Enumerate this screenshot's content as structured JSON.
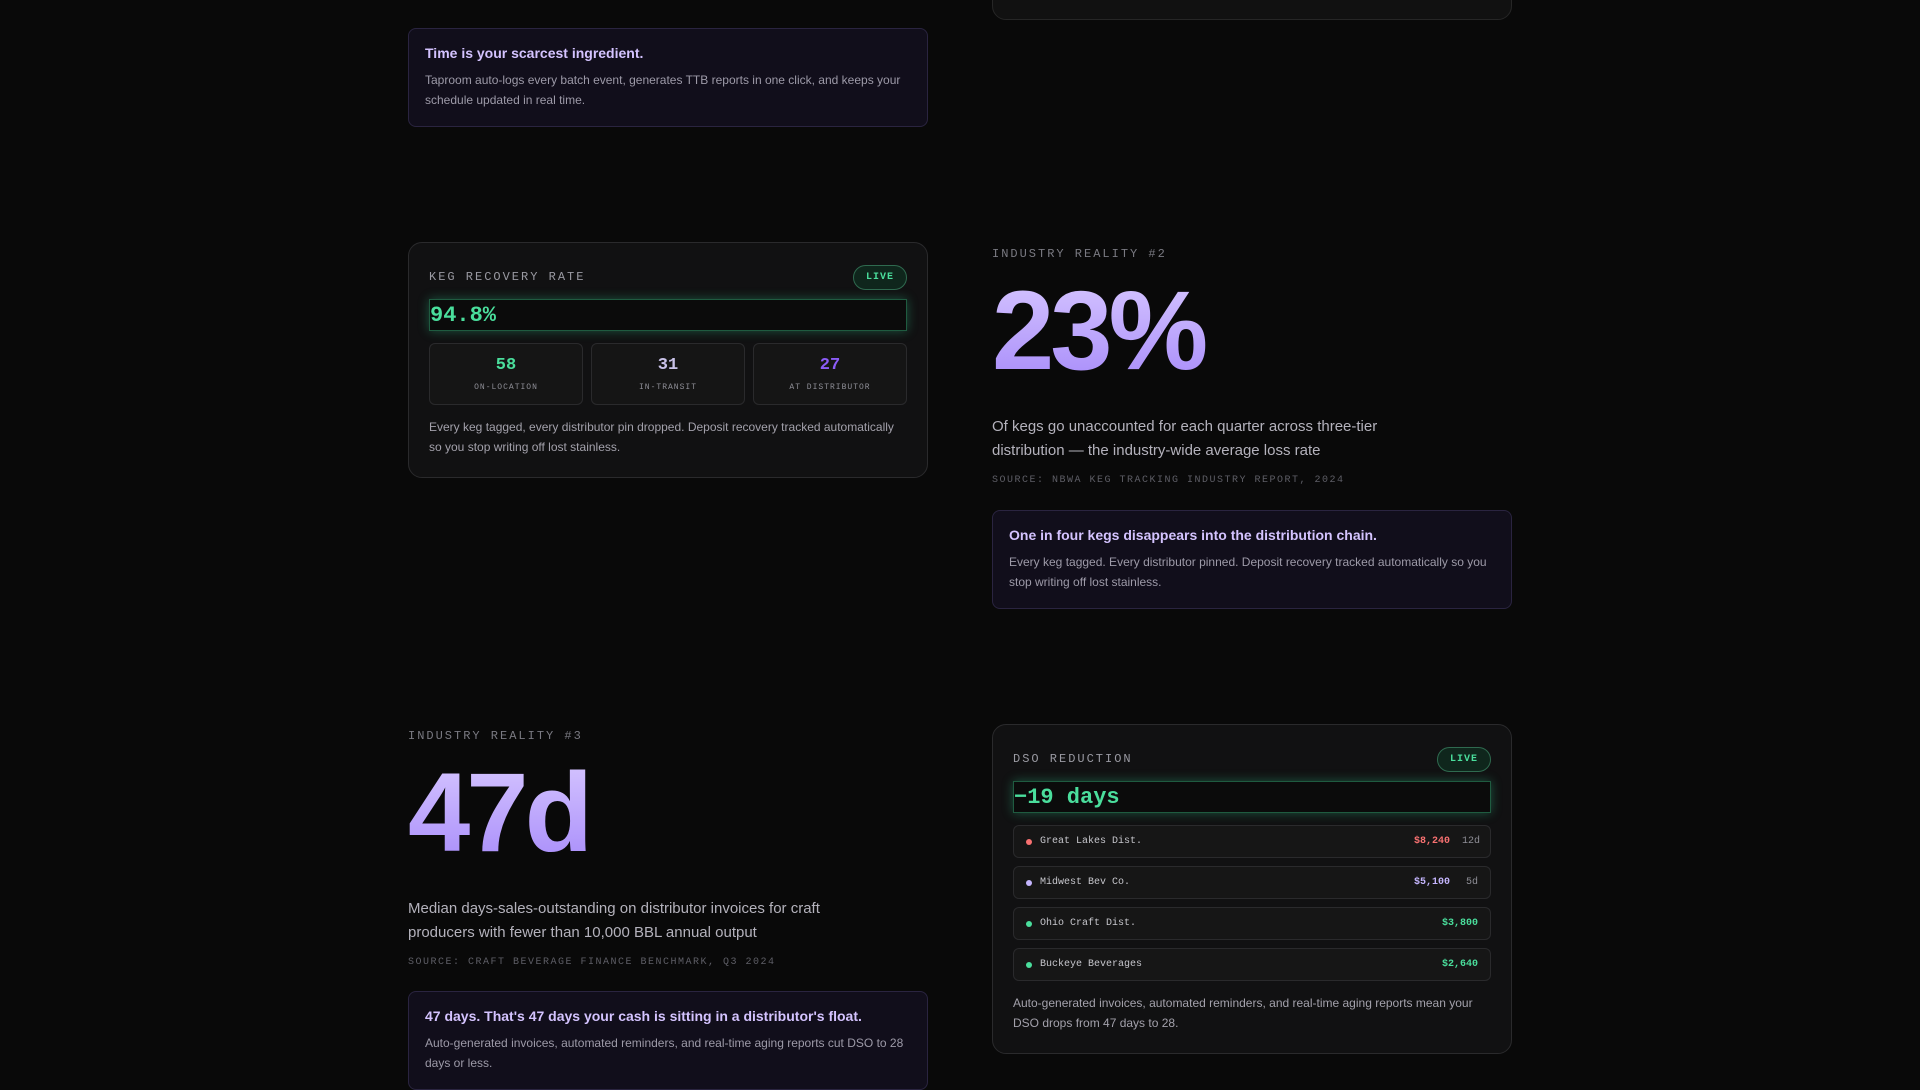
{
  "callout_time": {
    "title": "Time is your scarcest ingredient.",
    "body": "Taproom auto-logs every batch event, generates TTB reports in one click, and keeps your schedule updated in real time."
  },
  "keg_card": {
    "title": "KEG RECOVERY RATE",
    "badge": "LIVE",
    "value": "94.8%",
    "stats": [
      {
        "value": "58",
        "label": "ON-LOCATION",
        "color": "#4ade9c"
      },
      {
        "value": "31",
        "label": "IN-TRANSIT",
        "color": "#c9c2e8"
      },
      {
        "value": "27",
        "label": "AT DISTRIBUTOR",
        "color": "#8b5cf6"
      }
    ],
    "description": "Every keg tagged, every distributor pin dropped. Deposit recovery tracked automatically so you stop writing off lost stainless."
  },
  "reality_2": {
    "eyebrow": "INDUSTRY REALITY #2",
    "big": "23%",
    "description": "Of kegs go unaccounted for each quarter across three-tier distribution — the industry-wide average loss rate",
    "source": "SOURCE: NBWA KEG TRACKING INDUSTRY REPORT, 2024"
  },
  "callout_kegs": {
    "title": "One in four kegs disappears into the distribution chain.",
    "body": "Every keg tagged. Every distributor pinned. Deposit recovery tracked automatically so you stop writing off lost stainless."
  },
  "reality_3": {
    "eyebrow": "INDUSTRY REALITY #3",
    "big": "47d",
    "description": "Median days-sales-outstanding on distributor invoices for craft producers with fewer than 10,000 BBL annual output",
    "source": "SOURCE: CRAFT BEVERAGE FINANCE BENCHMARK, Q3 2024"
  },
  "dso_card": {
    "title": "DSO REDUCTION",
    "badge": "LIVE",
    "value": "−19 days",
    "rows": [
      {
        "name": "Great Lakes Dist.",
        "amount": "$8,240",
        "days": "12d",
        "color": "#f87171"
      },
      {
        "name": "Midwest Bev Co.",
        "amount": "$5,100",
        "days": "5d",
        "color": "#c4b5fd"
      },
      {
        "name": "Ohio Craft Dist.",
        "amount": "$3,800",
        "days": "",
        "color": "#4ade9c"
      },
      {
        "name": "Buckeye Beverages",
        "amount": "$2,640",
        "days": "",
        "color": "#4ade9c"
      }
    ],
    "description": "Auto-generated invoices, automated reminders, and real-time aging reports mean your DSO drops from 47 days to 28."
  },
  "callout_dso": {
    "title": "47 days. That's 47 days your cash is sitting in a distributor's float.",
    "body": "Auto-generated invoices, automated reminders, and real-time aging reports cut DSO to 28 days or less."
  }
}
